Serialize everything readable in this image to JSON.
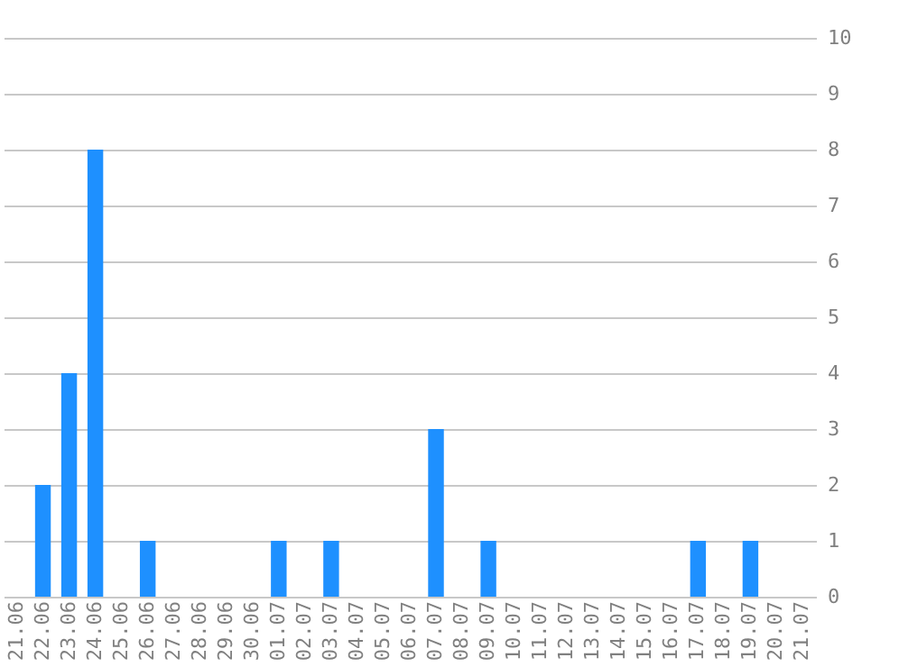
{
  "chart_data": {
    "type": "bar",
    "categories": [
      "21.06",
      "22.06",
      "23.06",
      "24.06",
      "25.06",
      "26.06",
      "27.06",
      "28.06",
      "29.06",
      "30.06",
      "01.07",
      "02.07",
      "03.07",
      "04.07",
      "05.07",
      "06.07",
      "07.07",
      "08.07",
      "09.07",
      "10.07",
      "11.07",
      "12.07",
      "13.07",
      "14.07",
      "15.07",
      "16.07",
      "17.07",
      "18.07",
      "19.07",
      "20.07",
      "21.07"
    ],
    "values": [
      0,
      2,
      4,
      8,
      0,
      1,
      0,
      0,
      0,
      0,
      1,
      0,
      1,
      0,
      0,
      0,
      3,
      0,
      1,
      0,
      0,
      0,
      0,
      0,
      0,
      0,
      1,
      0,
      1,
      0,
      0
    ],
    "color": "#1e90ff",
    "ylim": [
      0,
      10
    ],
    "yticks": [
      0,
      1,
      2,
      3,
      4,
      5,
      6,
      7,
      8,
      9,
      10
    ],
    "grid": "y"
  }
}
